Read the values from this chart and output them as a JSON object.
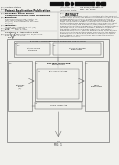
{
  "bg_color": "#f0f0ec",
  "barcode_color": "#111111",
  "header_text_color": "#555555",
  "body_text_color": "#555555",
  "box_color": "#777777",
  "line_color": "#666666",
  "patent_num": "US 2013/0060986 A1",
  "pub_date": "Mar. 14, 2013",
  "invention_title": "BATTERY PACK FAULT COMMUNICATION AND HANDLING",
  "fig_label": "FIG. 1"
}
